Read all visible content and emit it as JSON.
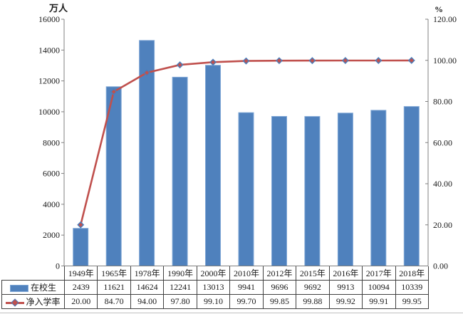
{
  "chart_data": {
    "type": "combo-bar-line",
    "title": "",
    "categories": [
      "1949年",
      "1965年",
      "1978年",
      "1990年",
      "2000年",
      "2010年",
      "2012年",
      "2015年",
      "2016年",
      "2017年",
      "2018年"
    ],
    "series": [
      {
        "name": "在校生",
        "type": "bar",
        "axis": "left",
        "color": "#4f81bd",
        "border_color": "#7fa7d6",
        "values": [
          2439,
          11621,
          14624,
          12241,
          13013,
          9941,
          9696,
          9692,
          9913,
          10094,
          10339
        ],
        "display": [
          "2439",
          "11621",
          "14624",
          "12241",
          "13013",
          "9941",
          "9696",
          "9692",
          "9913",
          "10094",
          "10339"
        ]
      },
      {
        "name": "净入学率",
        "type": "line",
        "axis": "right",
        "color": "#c0504d",
        "marker": "diamond",
        "marker_border": "#4a7ebb",
        "values": [
          20.0,
          84.7,
          94.0,
          97.8,
          99.1,
          99.7,
          99.85,
          99.88,
          99.92,
          99.91,
          99.95
        ],
        "display": [
          "20.00",
          "84.70",
          "94.00",
          "97.80",
          "99.10",
          "99.70",
          "99.85",
          "99.88",
          "99.92",
          "99.91",
          "99.95"
        ]
      }
    ],
    "left_axis": {
      "title": "万人",
      "min": 0,
      "max": 16000,
      "step": 2000,
      "tick_labels": [
        "0",
        "2000",
        "4000",
        "6000",
        "8000",
        "10000",
        "12000",
        "14000",
        "16000"
      ]
    },
    "right_axis": {
      "title": "%",
      "min": 0,
      "max": 120,
      "step": 20,
      "tick_labels": [
        "0.00",
        "20.00",
        "40.00",
        "60.00",
        "80.00",
        "100.00",
        "120.00"
      ]
    },
    "grid": false,
    "legend_position": "data-table",
    "data_table": true,
    "axis_color": "#808080",
    "table_border_color": "#404040"
  }
}
